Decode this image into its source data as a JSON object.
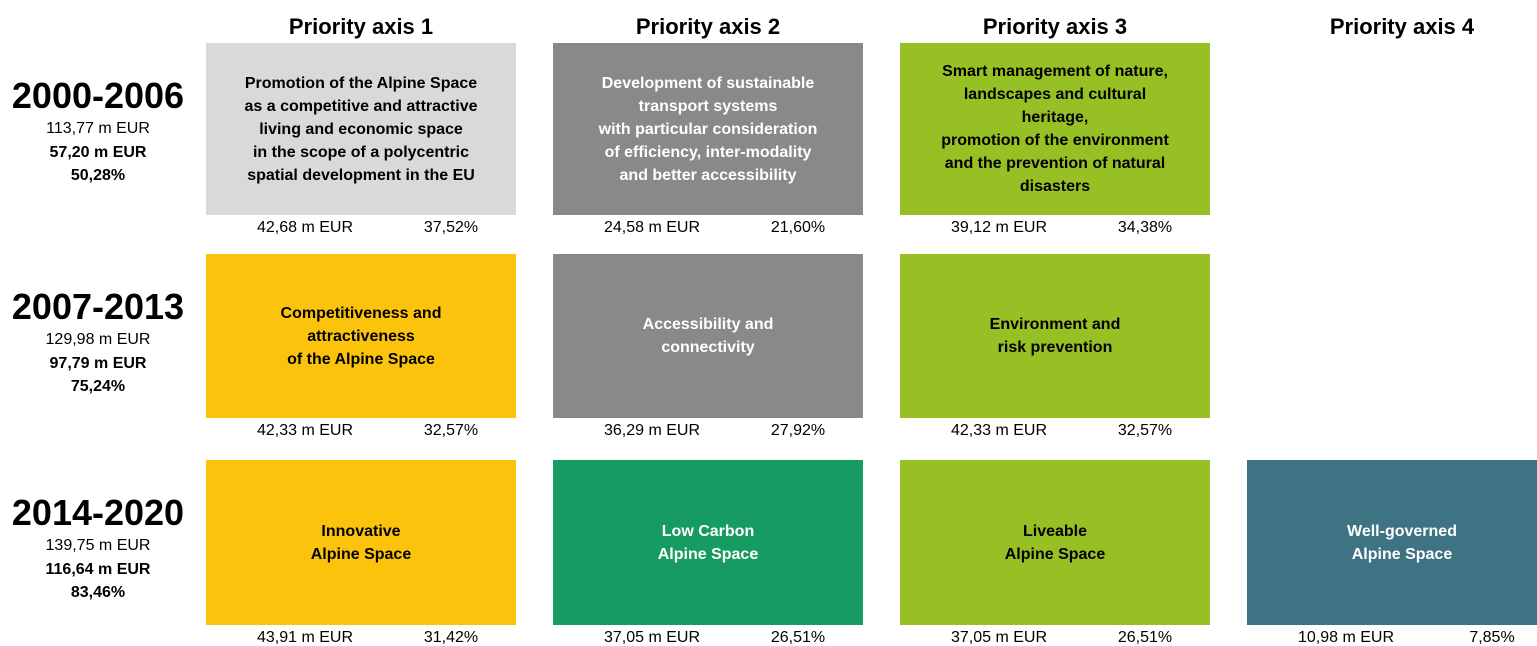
{
  "headers": [
    "Priority axis 1",
    "Priority axis 2",
    "Priority axis 3",
    "Priority axis 4"
  ],
  "periods": [
    {
      "label": "2000-2006",
      "total": "113,77 m EUR",
      "funding": "57,20 m EUR",
      "share": "50,28%",
      "cells": [
        {
          "lines": [
            "Promotion of the Alpine Space",
            "as a competitive and attractive",
            "living and economic space",
            "in the scope of a polycentric",
            "spatial development in the EU"
          ],
          "color": "#d9d9d9",
          "text_color": "#000000",
          "amount": "42,68 m EUR",
          "share": "37,52%"
        },
        {
          "lines": [
            "Development of sustainable",
            "transport systems",
            "with particular consideration",
            "of efficiency, inter-modality",
            "and better accessibility"
          ],
          "color": "#898989",
          "text_color": "#ffffff",
          "amount": "24,58 m EUR",
          "share": "21,60%"
        },
        {
          "lines": [
            "Smart management of nature,",
            "landscapes and cultural",
            "heritage,",
            "promotion of the environment",
            "and the prevention of natural",
            "disasters"
          ],
          "color": "#97c024",
          "text_color": "#000000",
          "amount": "39,12 m EUR",
          "share": "34,38%"
        }
      ]
    },
    {
      "label": "2007-2013",
      "total": "129,98 m EUR",
      "funding": "97,79 m EUR",
      "share": "75,24%",
      "cells": [
        {
          "lines": [
            "Competitiveness and",
            "attractiveness",
            "of the Alpine Space"
          ],
          "color": "#fbc30b",
          "text_color": "#000000",
          "amount": "42,33 m EUR",
          "share": "32,57%"
        },
        {
          "lines": [
            "Accessibility and",
            "connectivity"
          ],
          "color": "#898989",
          "text_color": "#ffffff",
          "amount": "36,29 m EUR",
          "share": "27,92%"
        },
        {
          "lines": [
            "Environment and",
            "risk prevention"
          ],
          "color": "#97c024",
          "text_color": "#000000",
          "amount": "42,33 m EUR",
          "share": "32,57%"
        }
      ]
    },
    {
      "label": "2014-2020",
      "total": "139,75 m EUR",
      "funding": "116,64 m EUR",
      "share": "83,46%",
      "cells": [
        {
          "lines": [
            "Innovative",
            "Alpine Space"
          ],
          "color": "#fbc30b",
          "text_color": "#000000",
          "amount": "43,91 m EUR",
          "share": "31,42%"
        },
        {
          "lines": [
            "Low Carbon",
            "Alpine Space"
          ],
          "color": "#169b62",
          "text_color": "#ffffff",
          "amount": "37,05 m EUR",
          "share": "26,51%"
        },
        {
          "lines": [
            "Liveable",
            "Alpine Space"
          ],
          "color": "#97c024",
          "text_color": "#000000",
          "amount": "37,05 m EUR",
          "share": "26,51%"
        },
        {
          "lines": [
            "Well-governed",
            "Alpine Space"
          ],
          "color": "#3d7383",
          "text_color": "#ffffff",
          "amount": "10,98 m EUR",
          "share": "7,85%"
        }
      ]
    }
  ]
}
